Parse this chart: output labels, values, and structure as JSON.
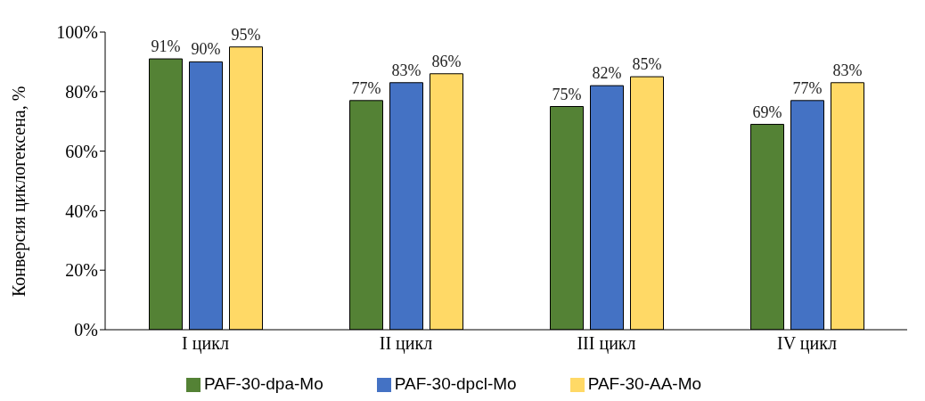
{
  "chart_data": {
    "type": "bar",
    "ylabel": "Конверсия циклогексена, %",
    "categories": [
      "I цикл",
      "II цикл",
      "III цикл",
      "IV цикл"
    ],
    "series": [
      {
        "name": "PAF-30-dpa-Mo",
        "color": "#548235",
        "values": [
          91,
          77,
          75,
          69
        ],
        "value_labels": [
          "91%",
          "77%",
          "75%",
          "69%"
        ]
      },
      {
        "name": "PAF-30-dpcl-Mo",
        "color": "#4472c4",
        "values": [
          90,
          83,
          82,
          77
        ],
        "value_labels": [
          "90%",
          "83%",
          "82%",
          "77%"
        ]
      },
      {
        "name": "PAF-30-AA-Mo",
        "color": "#ffd966",
        "values": [
          95,
          86,
          85,
          83
        ],
        "value_labels": [
          "95%",
          "86%",
          "85%",
          "83%"
        ]
      }
    ],
    "ylim": [
      0,
      100
    ],
    "yticks": [
      {
        "value": 0,
        "label": "0%"
      },
      {
        "value": 20,
        "label": "20%"
      },
      {
        "value": 40,
        "label": "40%"
      },
      {
        "value": 60,
        "label": "60%"
      },
      {
        "value": 80,
        "label": "80%"
      },
      {
        "value": 100,
        "label": "100%"
      }
    ],
    "grid": false,
    "legend": "bottom"
  }
}
